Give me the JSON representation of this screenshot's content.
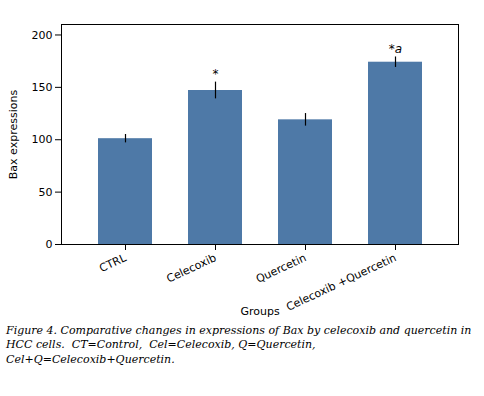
{
  "chart_data": {
    "type": "bar",
    "categories": [
      "CTRL",
      "Celecoxib",
      "Quercetin",
      "Celecoxib +Quercetin"
    ],
    "values": [
      101,
      147,
      119,
      174
    ],
    "errors": [
      4,
      8,
      6,
      5
    ],
    "annotations": [
      null,
      "*",
      null,
      "*a"
    ],
    "xlabel": "Groups",
    "ylabel": "Bax expressions",
    "caption": "Figure 4. Comparative changes in expressions of Bax by celecoxib and quercetin in HCC cells.  CT=Control,  Cel=Celecoxib, Q=Quercetin, Cel+Q=Celecoxib+Quercetin.",
    "ylim": [
      0,
      210
    ],
    "yticks": [
      0,
      50,
      100,
      150,
      200
    ],
    "grid": false,
    "color": "#4e79a7"
  }
}
